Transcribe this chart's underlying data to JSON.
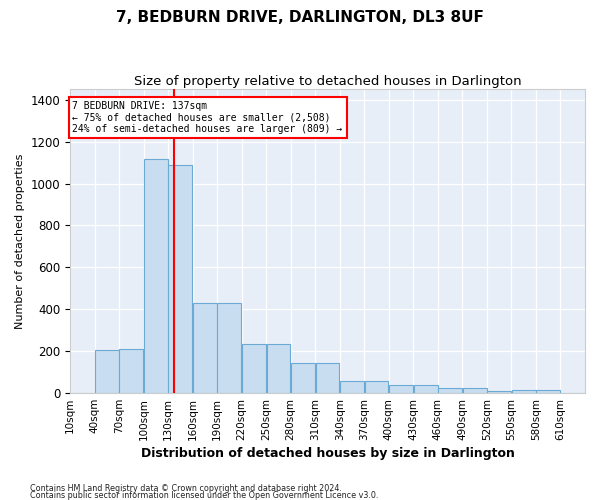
{
  "title": "7, BEDBURN DRIVE, DARLINGTON, DL3 8UF",
  "subtitle": "Size of property relative to detached houses in Darlington",
  "xlabel": "Distribution of detached houses by size in Darlington",
  "ylabel": "Number of detached properties",
  "categories": [
    "10sqm",
    "40sqm",
    "70sqm",
    "100sqm",
    "130sqm",
    "160sqm",
    "190sqm",
    "220sqm",
    "250sqm",
    "280sqm",
    "310sqm",
    "340sqm",
    "370sqm",
    "400sqm",
    "430sqm",
    "460sqm",
    "490sqm",
    "520sqm",
    "550sqm",
    "580sqm",
    "610sqm"
  ],
  "bar_heights": [
    0,
    205,
    210,
    1115,
    1090,
    430,
    430,
    235,
    235,
    145,
    145,
    58,
    58,
    40,
    38,
    27,
    27,
    12,
    15,
    15,
    0
  ],
  "bar_color": "#c9ddf0",
  "bar_edge_color": "#6aaad4",
  "vline_x": 137,
  "vline_color": "red",
  "annotation_line1": "7 BEDBURN DRIVE: 137sqm",
  "annotation_line2": "← 75% of detached houses are smaller (2,508)",
  "annotation_line3": "24% of semi-detached houses are larger (809) →",
  "ylim": [
    0,
    1450
  ],
  "yticks": [
    0,
    200,
    400,
    600,
    800,
    1000,
    1200,
    1400
  ],
  "xlim_left": 10,
  "xlim_right": 640,
  "footnote1": "Contains HM Land Registry data © Crown copyright and database right 2024.",
  "footnote2": "Contains public sector information licensed under the Open Government Licence v3.0.",
  "fig_bg_color": "#ffffff",
  "plot_bg_color": "#e8eef8",
  "grid_color": "#ffffff",
  "title_fontsize": 11,
  "subtitle_fontsize": 9.5
}
